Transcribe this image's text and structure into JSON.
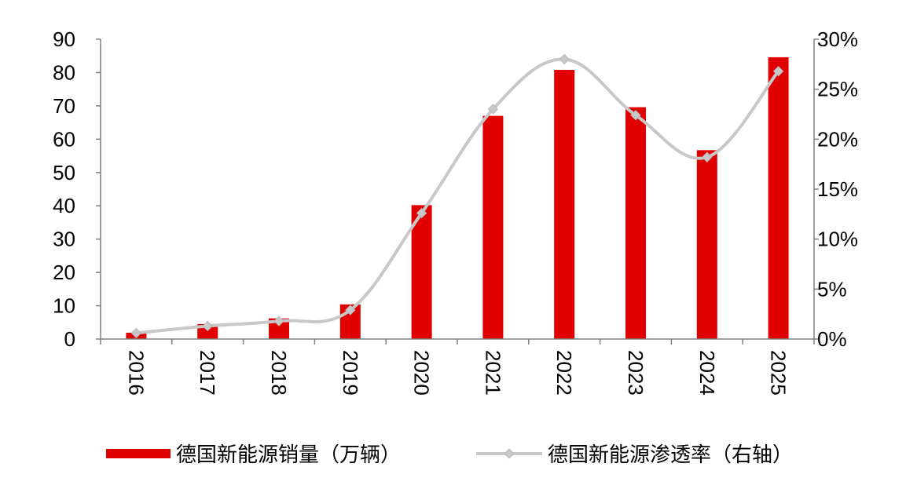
{
  "chart_data": {
    "type": "bar",
    "categories": [
      "2016",
      "2017",
      "2018",
      "2019",
      "2020",
      "2021",
      "2022",
      "2023",
      "2024",
      "2025"
    ],
    "series": [
      {
        "name": "德国新能源销量（万辆）",
        "type": "bar",
        "axis": "left",
        "color": "#e00000",
        "values": [
          1.9,
          4.5,
          6.2,
          10.4,
          40.2,
          67.0,
          80.8,
          69.6,
          56.7,
          84.6
        ]
      },
      {
        "name": "德国新能源渗透率（右轴）",
        "type": "line",
        "axis": "right",
        "color": "#c8c8c8",
        "values": [
          0.6,
          1.3,
          1.8,
          2.9,
          12.6,
          23.0,
          28.0,
          22.4,
          18.2,
          26.8
        ]
      }
    ],
    "left_axis": {
      "min": 0,
      "max": 90,
      "ticks": [
        "0",
        "10",
        "20",
        "30",
        "40",
        "50",
        "60",
        "70",
        "80",
        "90"
      ]
    },
    "right_axis": {
      "min": 0,
      "max": 30,
      "ticks": [
        "0%",
        "5%",
        "10%",
        "15%",
        "20%",
        "25%",
        "30%"
      ]
    },
    "title": "",
    "xlabel": "",
    "ylabel": "",
    "grid": false,
    "legend_position": "bottom",
    "x_tick_rotation": "vertical"
  }
}
